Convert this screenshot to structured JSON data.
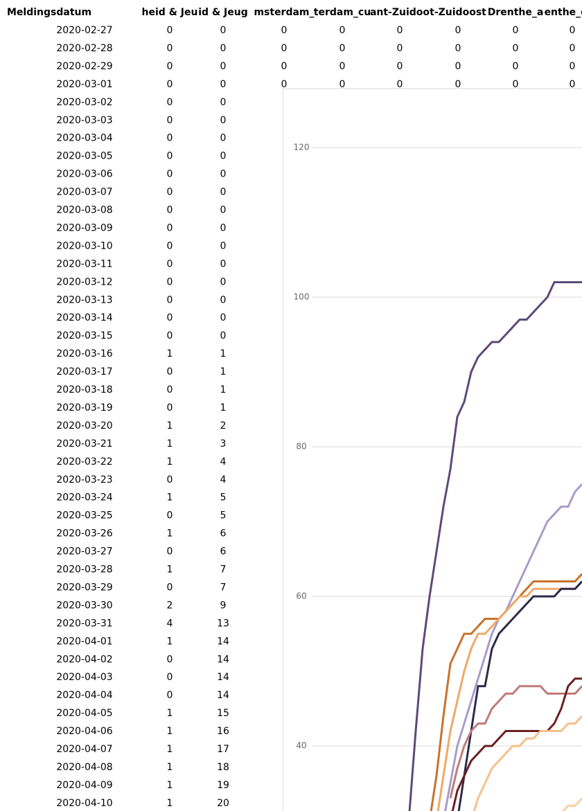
{
  "table": {
    "header": [
      "Meldingsdatum",
      "heid & Jeu",
      "id & Jeug",
      "msterdam_",
      "terdam_cu",
      "ant-Zuidoo",
      "t-Zuidoost",
      "Drenthe_a",
      "enthe_cun"
    ],
    "rows": [
      [
        "2020-02-27",
        "0",
        "0",
        "0",
        "0",
        "0",
        "0",
        "0",
        "0"
      ],
      [
        "2020-02-28",
        "0",
        "0",
        "0",
        "0",
        "0",
        "0",
        "0",
        "0"
      ],
      [
        "2020-02-29",
        "0",
        "0",
        "0",
        "0",
        "0",
        "0",
        "0",
        "0"
      ],
      [
        "2020-03-01",
        "0",
        "0",
        "0",
        "0",
        "0",
        "0",
        "0",
        "0"
      ],
      [
        "2020-03-02",
        "0",
        "0"
      ],
      [
        "2020-03-03",
        "0",
        "0"
      ],
      [
        "2020-03-04",
        "0",
        "0"
      ],
      [
        "2020-03-05",
        "0",
        "0"
      ],
      [
        "2020-03-06",
        "0",
        "0"
      ],
      [
        "2020-03-07",
        "0",
        "0"
      ],
      [
        "2020-03-08",
        "0",
        "0"
      ],
      [
        "2020-03-09",
        "0",
        "0"
      ],
      [
        "2020-03-10",
        "0",
        "0"
      ],
      [
        "2020-03-11",
        "0",
        "0"
      ],
      [
        "2020-03-12",
        "0",
        "0"
      ],
      [
        "2020-03-13",
        "0",
        "0"
      ],
      [
        "2020-03-14",
        "0",
        "0"
      ],
      [
        "2020-03-15",
        "0",
        "0"
      ],
      [
        "2020-03-16",
        "1",
        "1"
      ],
      [
        "2020-03-17",
        "0",
        "1"
      ],
      [
        "2020-03-18",
        "0",
        "1"
      ],
      [
        "2020-03-19",
        "0",
        "1"
      ],
      [
        "2020-03-20",
        "1",
        "2"
      ],
      [
        "2020-03-21",
        "1",
        "3"
      ],
      [
        "2020-03-22",
        "1",
        "4"
      ],
      [
        "2020-03-23",
        "0",
        "4"
      ],
      [
        "2020-03-24",
        "1",
        "5"
      ],
      [
        "2020-03-25",
        "0",
        "5"
      ],
      [
        "2020-03-26",
        "1",
        "6"
      ],
      [
        "2020-03-27",
        "0",
        "6"
      ],
      [
        "2020-03-28",
        "1",
        "7"
      ],
      [
        "2020-03-29",
        "0",
        "7"
      ],
      [
        "2020-03-30",
        "2",
        "9"
      ],
      [
        "2020-03-31",
        "4",
        "13"
      ],
      [
        "2020-04-01",
        "1",
        "14"
      ],
      [
        "2020-04-02",
        "0",
        "14"
      ],
      [
        "2020-04-03",
        "0",
        "14"
      ],
      [
        "2020-04-04",
        "0",
        "14"
      ],
      [
        "2020-04-05",
        "1",
        "15"
      ],
      [
        "2020-04-06",
        "1",
        "16"
      ],
      [
        "2020-04-07",
        "1",
        "17"
      ],
      [
        "2020-04-08",
        "1",
        "18"
      ],
      [
        "2020-04-09",
        "1",
        "19"
      ],
      [
        "2020-04-10",
        "1",
        "20"
      ]
    ]
  },
  "chart_data": {
    "type": "line",
    "ylim": [
      31.3,
      127.7
    ],
    "yticks": [
      40,
      60,
      80,
      100,
      120
    ],
    "grid": true,
    "series": [
      {
        "color": "#5b4a7a",
        "values": [
          null,
          30,
          42,
          53,
          60,
          66,
          72,
          77,
          84,
          86,
          90,
          92,
          93,
          94,
          94,
          95,
          96,
          97,
          97,
          98,
          99,
          100,
          102,
          102,
          102,
          102,
          102
        ]
      },
      {
        "color": "#a99bc9",
        "values": [
          null,
          null,
          null,
          null,
          null,
          null,
          30,
          35,
          40,
          43,
          46,
          49,
          52,
          55,
          57,
          58,
          60,
          62,
          64,
          66,
          68,
          70,
          71,
          72,
          72,
          74,
          75
        ]
      },
      {
        "color": "#c8722a",
        "values": [
          null,
          null,
          null,
          null,
          30,
          36,
          44,
          51,
          53,
          55,
          55,
          56,
          57,
          57,
          57,
          58,
          59,
          60,
          61,
          62,
          62,
          62,
          62,
          62,
          62,
          62,
          63
        ]
      },
      {
        "color": "#f0a868",
        "values": [
          null,
          null,
          null,
          null,
          null,
          30,
          36,
          42,
          46,
          50,
          53,
          55,
          55,
          56,
          57,
          58,
          59,
          60,
          60,
          61,
          61,
          61,
          61,
          61,
          61,
          61,
          62
        ]
      },
      {
        "color": "#2e2a4a",
        "values": [
          null,
          null,
          null,
          null,
          null,
          null,
          null,
          null,
          30,
          36,
          42,
          48,
          48,
          53,
          55,
          56,
          57,
          58,
          59,
          60,
          60,
          60,
          60,
          61,
          61,
          61,
          62
        ]
      },
      {
        "color": "#c07a7a",
        "values": [
          null,
          null,
          null,
          null,
          null,
          null,
          null,
          33,
          37,
          40,
          42,
          43,
          43,
          45,
          46,
          47,
          47,
          48,
          48,
          48,
          48,
          47,
          47,
          47,
          47,
          47,
          48
        ]
      },
      {
        "color": "#6b2020",
        "values": [
          null,
          null,
          null,
          null,
          null,
          null,
          null,
          30,
          34,
          36,
          38,
          39,
          40,
          40,
          41,
          42,
          42,
          42,
          42,
          42,
          42,
          42,
          43,
          45,
          48,
          49,
          49
        ]
      },
      {
        "color": "#f5c08a",
        "values": [
          null,
          null,
          null,
          null,
          null,
          null,
          null,
          null,
          null,
          null,
          30,
          33,
          35,
          37,
          38,
          39,
          40,
          40,
          41,
          41,
          42,
          42,
          42,
          42,
          43,
          43,
          44
        ]
      },
      {
        "color": "#f8cfa0",
        "values": [
          null,
          null,
          null,
          null,
          null,
          null,
          null,
          null,
          null,
          null,
          null,
          null,
          null,
          null,
          null,
          null,
          null,
          null,
          null,
          null,
          null,
          null,
          30,
          31,
          32,
          32,
          33
        ]
      }
    ]
  }
}
